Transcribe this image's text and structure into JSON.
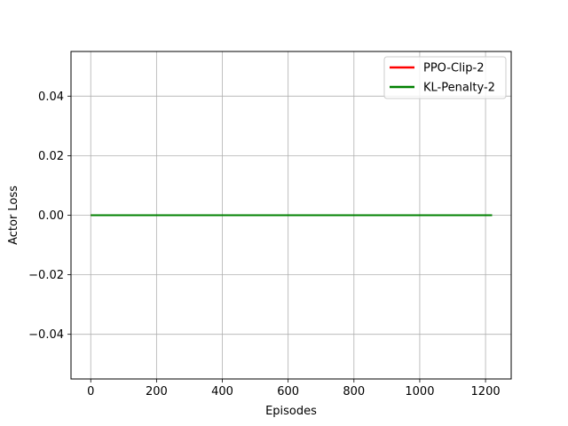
{
  "chart_data": {
    "type": "line",
    "title": "",
    "xlabel": "Episodes",
    "ylabel": "Actor Loss",
    "xlim": [
      -60,
      1278
    ],
    "ylim": [
      -0.055,
      0.055
    ],
    "xticks": [
      0,
      200,
      400,
      600,
      800,
      1000,
      1200
    ],
    "yticks": [
      -0.04,
      -0.02,
      0.0,
      0.02,
      0.04
    ],
    "xtick_labels": [
      "0",
      "200",
      "400",
      "600",
      "800",
      "1000",
      "1200"
    ],
    "ytick_labels": [
      "−0.04",
      "−0.02",
      "0.00",
      "0.02",
      "0.04"
    ],
    "grid": true,
    "legend_position": "top-right",
    "series": [
      {
        "name": "PPO-Clip-2",
        "color": "#ff0000",
        "x": [
          0,
          500
        ],
        "y": [
          0.0,
          0.0
        ]
      },
      {
        "name": "KL-Penalty-2",
        "color": "#008000",
        "x": [
          0,
          1220
        ],
        "y": [
          0.0,
          0.0
        ]
      }
    ]
  }
}
